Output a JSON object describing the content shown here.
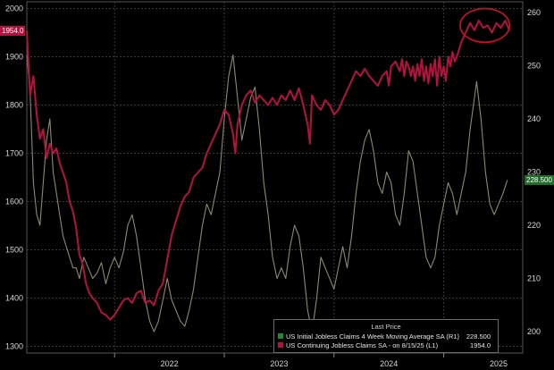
{
  "chart_data": {
    "type": "line",
    "left_axis": {
      "ticks": [
        1300,
        1400,
        1500,
        1600,
        1700,
        1800,
        1900,
        2000
      ],
      "range": [
        1286,
        2014
      ]
    },
    "right_axis": {
      "ticks": [
        200,
        210,
        220,
        230,
        240,
        250,
        260
      ],
      "range": [
        196,
        262
      ]
    },
    "x_labels": [
      "2022",
      "2023",
      "2024",
      "2025"
    ],
    "x_label_t": [
      2022.5,
      2023.5,
      2024.5,
      2025.5
    ],
    "year_boundaries": [
      2022,
      2023,
      2024,
      2025
    ],
    "x_range": [
      2021.2,
      2025.72
    ],
    "grid": true,
    "series": [
      {
        "name": "US Continuing Jobless Claims SA - on 8/15/25 (L1)",
        "axis": "left",
        "color": "#b5123f",
        "points": [
          [
            2021.2,
            1954
          ],
          [
            2021.23,
            1820
          ],
          [
            2021.26,
            1860
          ],
          [
            2021.29,
            1780
          ],
          [
            2021.32,
            1730
          ],
          [
            2021.35,
            1750
          ],
          [
            2021.38,
            1690
          ],
          [
            2021.41,
            1720
          ],
          [
            2021.44,
            1700
          ],
          [
            2021.47,
            1710
          ],
          [
            2021.5,
            1680
          ],
          [
            2021.53,
            1660
          ],
          [
            2021.56,
            1640
          ],
          [
            2021.59,
            1600
          ],
          [
            2021.62,
            1580
          ],
          [
            2021.65,
            1545
          ],
          [
            2021.68,
            1490
          ],
          [
            2021.71,
            1470
          ],
          [
            2021.74,
            1430
          ],
          [
            2021.77,
            1410
          ],
          [
            2021.8,
            1400
          ],
          [
            2021.84,
            1390
          ],
          [
            2021.88,
            1370
          ],
          [
            2021.92,
            1365
          ],
          [
            2021.96,
            1355
          ],
          [
            2022.0,
            1365
          ],
          [
            2022.04,
            1380
          ],
          [
            2022.08,
            1395
          ],
          [
            2022.12,
            1400
          ],
          [
            2022.16,
            1390
          ],
          [
            2022.2,
            1410
          ],
          [
            2022.24,
            1415
          ],
          [
            2022.28,
            1390
          ],
          [
            2022.32,
            1395
          ],
          [
            2022.36,
            1385
          ],
          [
            2022.4,
            1415
          ],
          [
            2022.44,
            1430
          ],
          [
            2022.48,
            1480
          ],
          [
            2022.52,
            1530
          ],
          [
            2022.56,
            1560
          ],
          [
            2022.6,
            1590
          ],
          [
            2022.64,
            1610
          ],
          [
            2022.68,
            1620
          ],
          [
            2022.72,
            1650
          ],
          [
            2022.76,
            1660
          ],
          [
            2022.8,
            1670
          ],
          [
            2022.84,
            1700
          ],
          [
            2022.88,
            1720
          ],
          [
            2022.92,
            1740
          ],
          [
            2022.96,
            1760
          ],
          [
            2023.0,
            1790
          ],
          [
            2023.04,
            1780
          ],
          [
            2023.08,
            1740
          ],
          [
            2023.1,
            1700
          ],
          [
            2023.12,
            1760
          ],
          [
            2023.16,
            1800
          ],
          [
            2023.2,
            1820
          ],
          [
            2023.24,
            1830
          ],
          [
            2023.28,
            1805
          ],
          [
            2023.32,
            1820
          ],
          [
            2023.36,
            1810
          ],
          [
            2023.4,
            1800
          ],
          [
            2023.44,
            1815
          ],
          [
            2023.48,
            1800
          ],
          [
            2023.52,
            1820
          ],
          [
            2023.56,
            1810
          ],
          [
            2023.6,
            1830
          ],
          [
            2023.64,
            1810
          ],
          [
            2023.68,
            1835
          ],
          [
            2023.72,
            1800
          ],
          [
            2023.76,
            1760
          ],
          [
            2023.78,
            1720
          ],
          [
            2023.8,
            1820
          ],
          [
            2023.84,
            1800
          ],
          [
            2023.88,
            1790
          ],
          [
            2023.92,
            1810
          ],
          [
            2023.96,
            1800
          ],
          [
            2024.0,
            1780
          ],
          [
            2024.04,
            1790
          ],
          [
            2024.08,
            1810
          ],
          [
            2024.12,
            1830
          ],
          [
            2024.16,
            1850
          ],
          [
            2024.2,
            1870
          ],
          [
            2024.24,
            1860
          ],
          [
            2024.28,
            1875
          ],
          [
            2024.32,
            1860
          ],
          [
            2024.36,
            1850
          ],
          [
            2024.4,
            1840
          ],
          [
            2024.44,
            1860
          ],
          [
            2024.48,
            1870
          ],
          [
            2024.5,
            1840
          ],
          [
            2024.52,
            1880
          ],
          [
            2024.56,
            1890
          ],
          [
            2024.6,
            1870
          ],
          [
            2024.62,
            1895
          ],
          [
            2024.64,
            1860
          ],
          [
            2024.66,
            1890
          ],
          [
            2024.68,
            1880
          ],
          [
            2024.7,
            1860
          ],
          [
            2024.72,
            1880
          ],
          [
            2024.74,
            1850
          ],
          [
            2024.76,
            1885
          ],
          [
            2024.78,
            1860
          ],
          [
            2024.8,
            1895
          ],
          [
            2024.82,
            1850
          ],
          [
            2024.84,
            1880
          ],
          [
            2024.86,
            1845
          ],
          [
            2024.88,
            1885
          ],
          [
            2024.9,
            1860
          ],
          [
            2024.92,
            1895
          ],
          [
            2024.94,
            1840
          ],
          [
            2024.96,
            1900
          ],
          [
            2024.98,
            1860
          ],
          [
            2025.0,
            1880
          ],
          [
            2025.02,
            1850
          ],
          [
            2025.04,
            1900
          ],
          [
            2025.06,
            1880
          ],
          [
            2025.08,
            1910
          ],
          [
            2025.1,
            1890
          ],
          [
            2025.12,
            1900
          ],
          [
            2025.16,
            1930
          ],
          [
            2025.2,
            1950
          ],
          [
            2025.24,
            1970
          ],
          [
            2025.28,
            1955
          ],
          [
            2025.32,
            1975
          ],
          [
            2025.36,
            1960
          ],
          [
            2025.4,
            1965
          ],
          [
            2025.44,
            1950
          ],
          [
            2025.48,
            1970
          ],
          [
            2025.52,
            1960
          ],
          [
            2025.56,
            1975
          ],
          [
            2025.6,
            1954
          ]
        ]
      },
      {
        "name": "US Initial Jobless Claims 4 Week Moving Average SA (R1)",
        "axis": "right",
        "color": "#8a8a6e",
        "points": [
          [
            2021.2,
            252
          ],
          [
            2021.23,
            245
          ],
          [
            2021.26,
            228
          ],
          [
            2021.29,
            222
          ],
          [
            2021.32,
            220
          ],
          [
            2021.35,
            228
          ],
          [
            2021.38,
            236
          ],
          [
            2021.41,
            240
          ],
          [
            2021.44,
            230
          ],
          [
            2021.47,
            226
          ],
          [
            2021.5,
            222
          ],
          [
            2021.53,
            218
          ],
          [
            2021.56,
            216
          ],
          [
            2021.59,
            214
          ],
          [
            2021.62,
            212
          ],
          [
            2021.65,
            212
          ],
          [
            2021.68,
            210
          ],
          [
            2021.72,
            214
          ],
          [
            2021.76,
            212
          ],
          [
            2021.8,
            210
          ],
          [
            2021.84,
            211
          ],
          [
            2021.88,
            213
          ],
          [
            2021.92,
            209
          ],
          [
            2021.96,
            212
          ],
          [
            2022.0,
            214
          ],
          [
            2022.04,
            212
          ],
          [
            2022.08,
            215
          ],
          [
            2022.12,
            220
          ],
          [
            2022.16,
            222
          ],
          [
            2022.2,
            218
          ],
          [
            2022.24,
            212
          ],
          [
            2022.28,
            206
          ],
          [
            2022.32,
            202
          ],
          [
            2022.36,
            200
          ],
          [
            2022.4,
            202
          ],
          [
            2022.44,
            206
          ],
          [
            2022.48,
            210
          ],
          [
            2022.52,
            206
          ],
          [
            2022.56,
            204
          ],
          [
            2022.6,
            202
          ],
          [
            2022.64,
            201
          ],
          [
            2022.68,
            204
          ],
          [
            2022.72,
            208
          ],
          [
            2022.76,
            214
          ],
          [
            2022.8,
            220
          ],
          [
            2022.84,
            224
          ],
          [
            2022.88,
            222
          ],
          [
            2022.92,
            226
          ],
          [
            2022.96,
            230
          ],
          [
            2023.0,
            240
          ],
          [
            2023.04,
            248
          ],
          [
            2023.08,
            252
          ],
          [
            2023.12,
            244
          ],
          [
            2023.16,
            236
          ],
          [
            2023.2,
            240
          ],
          [
            2023.24,
            244
          ],
          [
            2023.28,
            246
          ],
          [
            2023.32,
            238
          ],
          [
            2023.36,
            228
          ],
          [
            2023.4,
            222
          ],
          [
            2023.44,
            214
          ],
          [
            2023.48,
            210
          ],
          [
            2023.52,
            212
          ],
          [
            2023.56,
            210
          ],
          [
            2023.6,
            216
          ],
          [
            2023.64,
            220
          ],
          [
            2023.68,
            218
          ],
          [
            2023.72,
            212
          ],
          [
            2023.76,
            204
          ],
          [
            2023.8,
            200
          ],
          [
            2023.84,
            206
          ],
          [
            2023.88,
            214
          ],
          [
            2023.92,
            212
          ],
          [
            2023.96,
            210
          ],
          [
            2024.0,
            208
          ],
          [
            2024.04,
            212
          ],
          [
            2024.08,
            216
          ],
          [
            2024.12,
            212
          ],
          [
            2024.16,
            218
          ],
          [
            2024.2,
            226
          ],
          [
            2024.24,
            232
          ],
          [
            2024.28,
            236
          ],
          [
            2024.32,
            238
          ],
          [
            2024.36,
            234
          ],
          [
            2024.4,
            228
          ],
          [
            2024.44,
            226
          ],
          [
            2024.48,
            230
          ],
          [
            2024.52,
            228
          ],
          [
            2024.56,
            222
          ],
          [
            2024.6,
            220
          ],
          [
            2024.64,
            226
          ],
          [
            2024.68,
            234
          ],
          [
            2024.72,
            232
          ],
          [
            2024.76,
            226
          ],
          [
            2024.8,
            220
          ],
          [
            2024.84,
            214
          ],
          [
            2024.88,
            212
          ],
          [
            2024.92,
            214
          ],
          [
            2024.96,
            220
          ],
          [
            2025.0,
            224
          ],
          [
            2025.04,
            228
          ],
          [
            2025.08,
            226
          ],
          [
            2025.12,
            222
          ],
          [
            2025.16,
            226
          ],
          [
            2025.2,
            230
          ],
          [
            2025.24,
            238
          ],
          [
            2025.28,
            244
          ],
          [
            2025.3,
            247
          ],
          [
            2025.34,
            240
          ],
          [
            2025.38,
            230
          ],
          [
            2025.42,
            224
          ],
          [
            2025.46,
            222
          ],
          [
            2025.5,
            224
          ],
          [
            2025.54,
            226
          ],
          [
            2025.58,
            228.5
          ]
        ]
      }
    ],
    "last_values": [
      {
        "label": "1954.0",
        "color": "#b5123f",
        "axis": "left",
        "value": 1954
      },
      {
        "label": "228.500",
        "color": "#1f6b2a",
        "axis": "right",
        "value": 228.5
      }
    ],
    "annotation": {
      "type": "ellipse",
      "color": "#cc1122",
      "t_from": 2025.15,
      "t_to": 2025.6,
      "value_from": 1930,
      "value_to": 2000,
      "axis": "left"
    }
  },
  "legend": {
    "header": "Last Price",
    "items": [
      {
        "label": "US Initial Jobless Claims 4 Week Moving Average SA  (R1)",
        "value": "228.500",
        "color": "#1f8a2e"
      },
      {
        "label": "US Continuing Jobless Claims SA  -  on 8/15/25  (L1)",
        "value": "1954.0",
        "color": "#b5123f"
      }
    ]
  }
}
